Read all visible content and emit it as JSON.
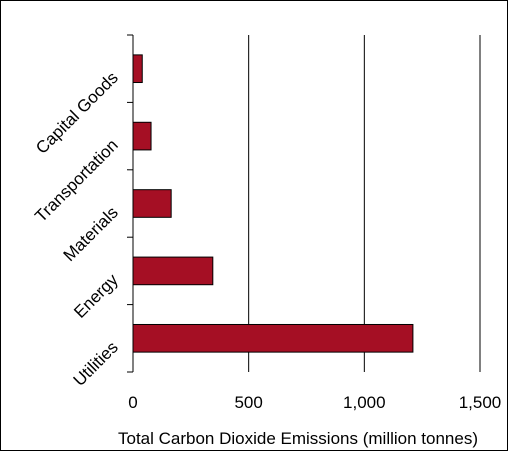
{
  "chart_data": {
    "type": "bar",
    "orientation": "horizontal",
    "categories": [
      "Utilities",
      "Energy",
      "Materials",
      "Transportation",
      "Capital Goods"
    ],
    "values": [
      1210,
      345,
      165,
      78,
      40
    ],
    "xlabel": "Total Carbon Dioxide Emissions (million tonnes)",
    "ylabel": "",
    "title": "",
    "xlim": [
      0,
      1500
    ],
    "xticks": [
      0,
      500,
      1000,
      1500
    ],
    "xtick_labels": [
      "0",
      "500",
      "1,000",
      "1,500"
    ],
    "grid": "vertical lines at x ticks",
    "legend": "none",
    "colors": {
      "bar_fill": "#a50f24",
      "bar_stroke": "#000000",
      "grid": "#000000"
    }
  }
}
